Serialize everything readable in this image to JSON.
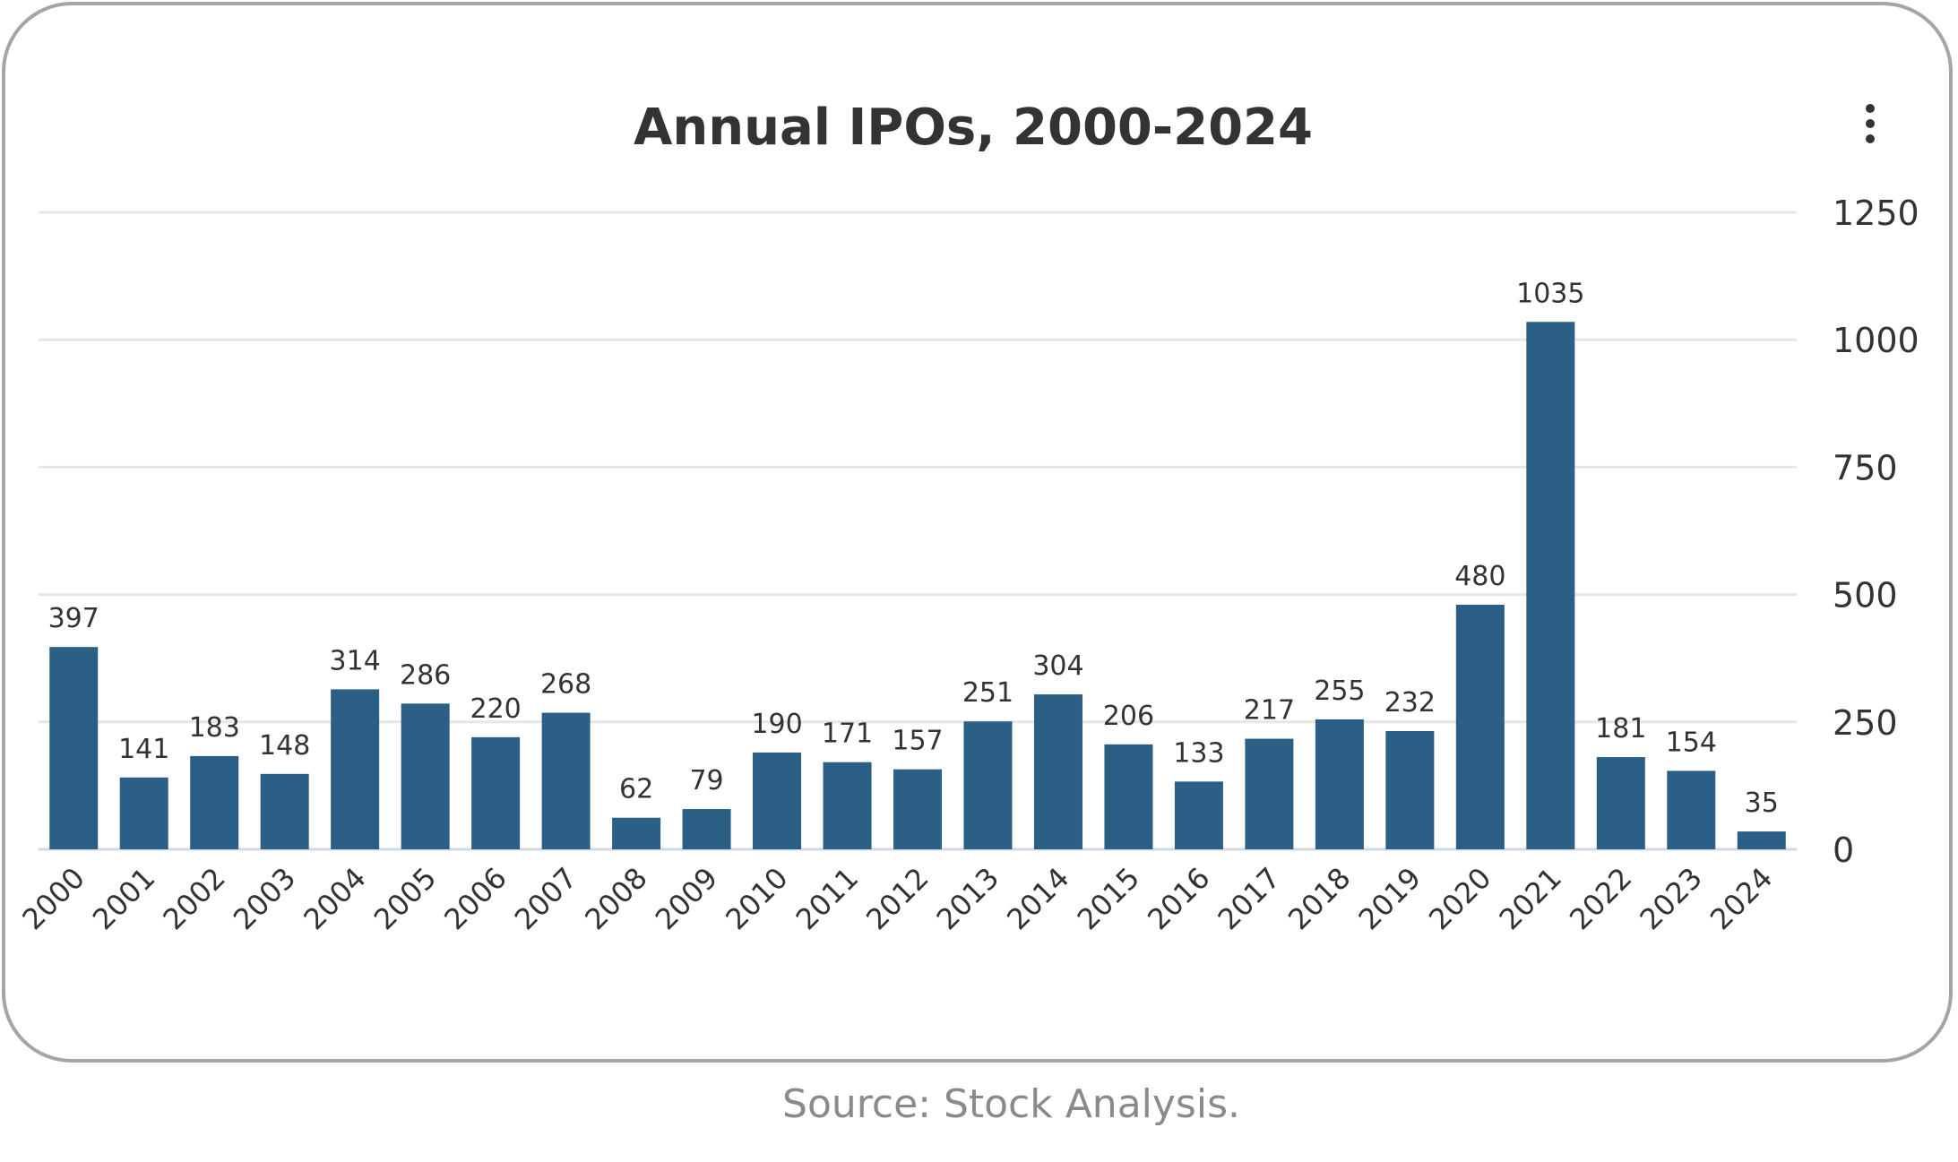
{
  "title": "Annual IPOs, 2000-2024",
  "source": "Source: Stock Analysis.",
  "menu": {
    "icon": "kebab-menu-icon"
  },
  "colors": {
    "bar": "#2b5f85",
    "grid": "#e6e6e6",
    "axis_text": "#333333",
    "source_text": "#8a8a8a"
  },
  "chart_data": {
    "type": "bar",
    "title": "Annual IPOs, 2000-2024",
    "xlabel": "",
    "ylabel": "",
    "categories": [
      "2000",
      "2001",
      "2002",
      "2003",
      "2004",
      "2005",
      "2006",
      "2007",
      "2008",
      "2009",
      "2010",
      "2011",
      "2012",
      "2013",
      "2014",
      "2015",
      "2016",
      "2017",
      "2018",
      "2019",
      "2020",
      "2021",
      "2022",
      "2023",
      "2024"
    ],
    "values": [
      397,
      141,
      183,
      148,
      314,
      286,
      220,
      268,
      62,
      79,
      190,
      171,
      157,
      251,
      304,
      206,
      133,
      217,
      255,
      232,
      480,
      1035,
      181,
      154,
      35
    ],
    "ylim": [
      0,
      1250
    ],
    "yticks": [
      0,
      250,
      500,
      750,
      1000,
      1250
    ],
    "y_axis_side": "right",
    "grid": true,
    "data_labels": true,
    "x_tick_rotation": "-45"
  }
}
